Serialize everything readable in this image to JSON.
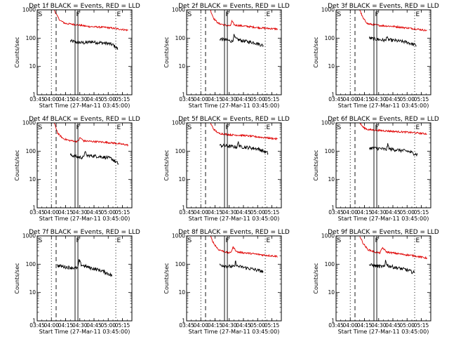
{
  "chart_data": {
    "type": "line",
    "layout": "3x3 grid",
    "y_scale": "log",
    "ylim": [
      1,
      1000
    ],
    "y_ticks": [
      1,
      10,
      100,
      1000
    ],
    "x_ticks": [
      "03:45",
      "04:00",
      "04:15",
      "04:30",
      "04:45",
      "05:00",
      "05:15"
    ],
    "xlabel": "Start Time (27-Mar-11 03:45:00)",
    "ylabel": "Counts/sec",
    "series_colors": {
      "events": "#000000",
      "lld": "#e00000"
    },
    "markers": [
      {
        "label": "S",
        "time": "03:45",
        "style": "solid"
      },
      {
        "label": "",
        "time": "04:00",
        "style": "dotted"
      },
      {
        "label": "",
        "time": "04:05",
        "style": "dashed"
      },
      {
        "label": "F",
        "time": "04:25",
        "style": "solid"
      },
      {
        "label": "",
        "time": "04:28",
        "style": "solid"
      },
      {
        "label": "E",
        "time": "05:08",
        "style": "dotted"
      }
    ],
    "panels": [
      {
        "title": "Det 1f BLACK = Events, RED = LLD",
        "events": {
          "start": "04:20",
          "end": "05:10",
          "levels": [
            [
              0,
              80
            ],
            [
              0.12,
              72
            ],
            [
              0.3,
              68
            ],
            [
              0.45,
              75
            ],
            [
              0.6,
              70
            ],
            [
              0.8,
              65
            ],
            [
              0.9,
              58
            ],
            [
              1,
              42
            ]
          ]
        },
        "lld": {
          "start": "04:03",
          "end": "05:21",
          "levels": [
            [
              0,
              1000
            ],
            [
              0.04,
              600
            ],
            [
              0.08,
              420
            ],
            [
              0.15,
              330
            ],
            [
              0.3,
              300
            ],
            [
              0.45,
              260
            ],
            [
              0.55,
              250
            ],
            [
              0.7,
              240
            ],
            [
              0.85,
              215
            ],
            [
              1,
              190
            ]
          ]
        }
      },
      {
        "title": "Det 2f BLACK = Events, RED = LLD",
        "events": {
          "start": "04:20",
          "end": "05:06",
          "levels": [
            [
              0,
              95
            ],
            [
              0.15,
              85
            ],
            [
              0.3,
              78
            ],
            [
              0.32,
              130
            ],
            [
              0.36,
              95
            ],
            [
              0.5,
              82
            ],
            [
              0.65,
              75
            ],
            [
              0.8,
              70
            ],
            [
              1,
              55
            ]
          ]
        },
        "lld": {
          "start": "04:10",
          "end": "05:21",
          "levels": [
            [
              0,
              1000
            ],
            [
              0.05,
              500
            ],
            [
              0.12,
              330
            ],
            [
              0.25,
              280
            ],
            [
              0.3,
              270
            ],
            [
              0.32,
              400
            ],
            [
              0.36,
              290
            ],
            [
              0.55,
              260
            ],
            [
              0.75,
              230
            ],
            [
              1,
              210
            ]
          ]
        }
      },
      {
        "title": "Det 3f BLACK = Events, RED = LLD",
        "events": {
          "start": "04:20",
          "end": "05:10",
          "levels": [
            [
              0,
              100
            ],
            [
              0.2,
              90
            ],
            [
              0.35,
              82
            ],
            [
              0.36,
              115
            ],
            [
              0.4,
              88
            ],
            [
              0.6,
              80
            ],
            [
              0.8,
              72
            ],
            [
              1,
              55
            ]
          ]
        },
        "lld": {
          "start": "04:10",
          "end": "05:21",
          "levels": [
            [
              0,
              1000
            ],
            [
              0.05,
              500
            ],
            [
              0.12,
              320
            ],
            [
              0.3,
              280
            ],
            [
              0.5,
              260
            ],
            [
              0.7,
              230
            ],
            [
              0.85,
              210
            ],
            [
              1,
              185
            ]
          ]
        }
      },
      {
        "title": "Det 4f BLACK = Events, RED = LLD",
        "events": {
          "start": "04:20",
          "end": "05:11",
          "levels": [
            [
              0,
              75
            ],
            [
              0.15,
              62
            ],
            [
              0.28,
              60
            ],
            [
              0.3,
              110
            ],
            [
              0.33,
              70
            ],
            [
              0.5,
              68
            ],
            [
              0.7,
              62
            ],
            [
              0.85,
              55
            ],
            [
              1,
              35
            ]
          ]
        },
        "lld": {
          "start": "04:03",
          "end": "05:21",
          "levels": [
            [
              0,
              1000
            ],
            [
              0.05,
              420
            ],
            [
              0.12,
              280
            ],
            [
              0.2,
              240
            ],
            [
              0.32,
              220
            ],
            [
              0.35,
              300
            ],
            [
              0.4,
              230
            ],
            [
              0.6,
              215
            ],
            [
              0.8,
              195
            ],
            [
              1,
              165
            ]
          ]
        }
      },
      {
        "title": "Det 5f BLACK = Events, RED = LLD",
        "events": {
          "start": "04:20",
          "end": "05:11",
          "levels": [
            [
              0,
              160
            ],
            [
              0.2,
              150
            ],
            [
              0.36,
              140
            ],
            [
              0.38,
              210
            ],
            [
              0.42,
              145
            ],
            [
              0.6,
              135
            ],
            [
              0.8,
              120
            ],
            [
              1,
              85
            ]
          ]
        },
        "lld": {
          "start": "04:10",
          "end": "05:21",
          "levels": [
            [
              0,
              1000
            ],
            [
              0.05,
              600
            ],
            [
              0.12,
              430
            ],
            [
              0.3,
              380
            ],
            [
              0.5,
              360
            ],
            [
              0.7,
              320
            ],
            [
              0.85,
              295
            ],
            [
              1,
              270
            ]
          ]
        }
      },
      {
        "title": "Det 6f BLACK = Events, RED = LLD",
        "events": {
          "start": "04:20",
          "end": "05:11",
          "levels": [
            [
              0,
              130
            ],
            [
              0.2,
              125
            ],
            [
              0.36,
              115
            ],
            [
              0.38,
              175
            ],
            [
              0.42,
              120
            ],
            [
              0.6,
              110
            ],
            [
              0.8,
              100
            ],
            [
              1,
              75
            ]
          ]
        },
        "lld": {
          "start": "04:10",
          "end": "05:21",
          "levels": [
            [
              0,
              1000
            ],
            [
              0.05,
              700
            ],
            [
              0.12,
              580
            ],
            [
              0.3,
              540
            ],
            [
              0.5,
              500
            ],
            [
              0.7,
              470
            ],
            [
              0.85,
              440
            ],
            [
              1,
              410
            ]
          ]
        }
      },
      {
        "title": "Det 7f BLACK = Events, RED = LLD",
        "events": {
          "start": "04:06",
          "end": "05:04",
          "levels": [
            [
              0,
              90
            ],
            [
              0.15,
              80
            ],
            [
              0.3,
              75
            ],
            [
              0.38,
              72
            ],
            [
              0.4,
              140
            ],
            [
              0.44,
              95
            ],
            [
              0.6,
              75
            ],
            [
              0.8,
              60
            ],
            [
              0.9,
              50
            ],
            [
              1,
              40
            ]
          ]
        },
        "lld": null
      },
      {
        "title": "Det 8f BLACK = Events, RED = LLD",
        "events": {
          "start": "04:20",
          "end": "05:06",
          "levels": [
            [
              0,
              95
            ],
            [
              0.2,
              85
            ],
            [
              0.34,
              80
            ],
            [
              0.36,
              125
            ],
            [
              0.4,
              85
            ],
            [
              0.6,
              75
            ],
            [
              0.8,
              65
            ],
            [
              1,
              55
            ]
          ]
        },
        "lld": {
          "start": "04:10",
          "end": "05:21",
          "levels": [
            [
              0,
              1000
            ],
            [
              0.05,
              550
            ],
            [
              0.12,
              330
            ],
            [
              0.25,
              260
            ],
            [
              0.3,
              250
            ],
            [
              0.34,
              400
            ],
            [
              0.4,
              270
            ],
            [
              0.6,
              240
            ],
            [
              0.8,
              210
            ],
            [
              1,
              190
            ]
          ]
        }
      },
      {
        "title": "Det 9f BLACK = Events, RED = LLD",
        "events": {
          "start": "04:20",
          "end": "05:08",
          "levels": [
            [
              0,
              95
            ],
            [
              0.2,
              85
            ],
            [
              0.34,
              80
            ],
            [
              0.36,
              145
            ],
            [
              0.4,
              90
            ],
            [
              0.6,
              75
            ],
            [
              0.8,
              65
            ],
            [
              1,
              50
            ]
          ]
        },
        "lld": {
          "start": "04:10",
          "end": "05:21",
          "levels": [
            [
              0,
              1000
            ],
            [
              0.05,
              550
            ],
            [
              0.12,
              330
            ],
            [
              0.25,
              260
            ],
            [
              0.3,
              250
            ],
            [
              0.34,
              380
            ],
            [
              0.4,
              270
            ],
            [
              0.6,
              230
            ],
            [
              0.8,
              200
            ],
            [
              1,
              165
            ]
          ]
        }
      }
    ]
  }
}
